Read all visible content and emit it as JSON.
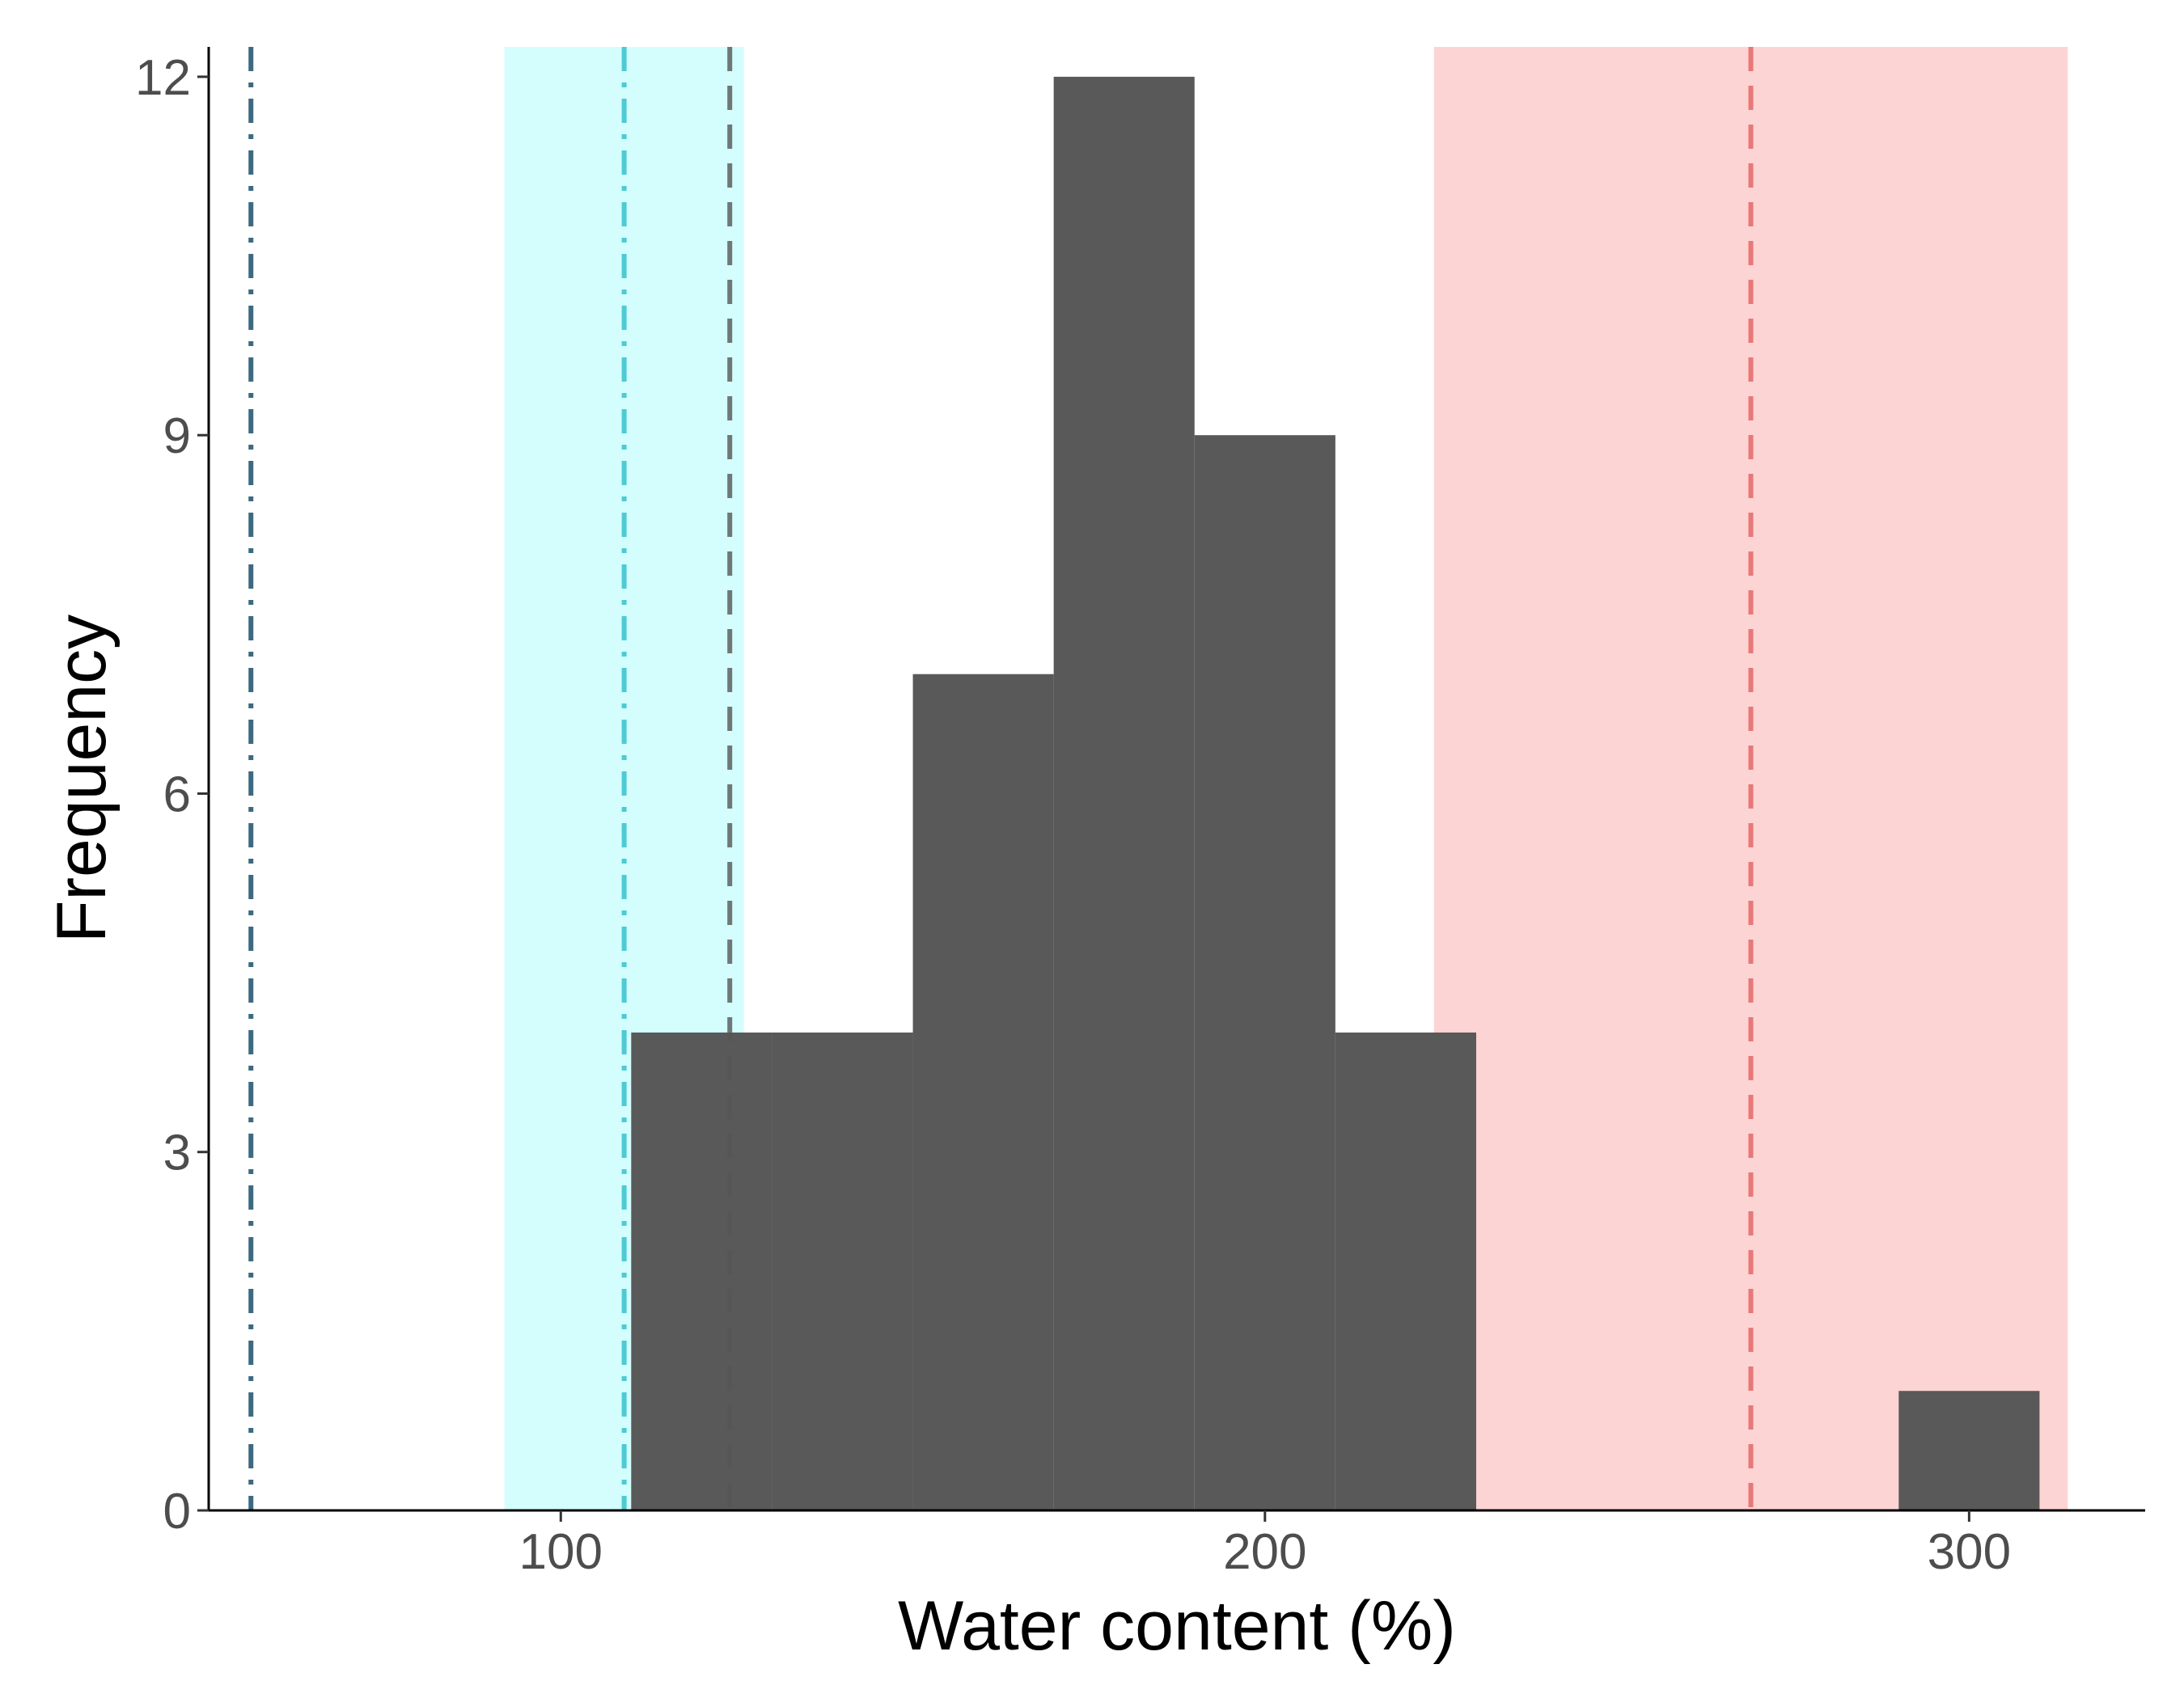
{
  "chart_data": {
    "type": "bar",
    "xlabel": "Water content (%)",
    "ylabel": "Frequency",
    "xlim": [
      50,
      325
    ],
    "ylim": [
      0,
      12.25
    ],
    "x_ticks": [
      100,
      200,
      300
    ],
    "y_ticks": [
      0,
      3,
      6,
      9,
      12
    ],
    "grid": false,
    "bins": [
      {
        "x0": 110,
        "x1": 130,
        "count": 4
      },
      {
        "x0": 130,
        "x1": 150,
        "count": 4
      },
      {
        "x0": 150,
        "x1": 170,
        "count": 7
      },
      {
        "x0": 170,
        "x1": 190,
        "count": 12
      },
      {
        "x0": 190,
        "x1": 210,
        "count": 9
      },
      {
        "x0": 210,
        "x1": 230,
        "count": 4
      },
      {
        "x0": 290,
        "x1": 310,
        "count": 1
      }
    ],
    "bands": [
      {
        "x0": 92,
        "x1": 126,
        "color": "#d4fefe"
      },
      {
        "x0": 224,
        "x1": 314,
        "color": "#fdd4d4"
      }
    ],
    "reference_lines": [
      {
        "x": 56,
        "style": "dashdot",
        "color": "#3d6a80"
      },
      {
        "x": 109,
        "style": "dashdot",
        "color": "#4ecad4"
      },
      {
        "x": 124,
        "style": "dashed",
        "color": "#555555"
      },
      {
        "x": 269,
        "style": "dashed",
        "color": "#e26060"
      }
    ],
    "colors": {
      "bar": "#595959",
      "axis": "#000000"
    }
  }
}
